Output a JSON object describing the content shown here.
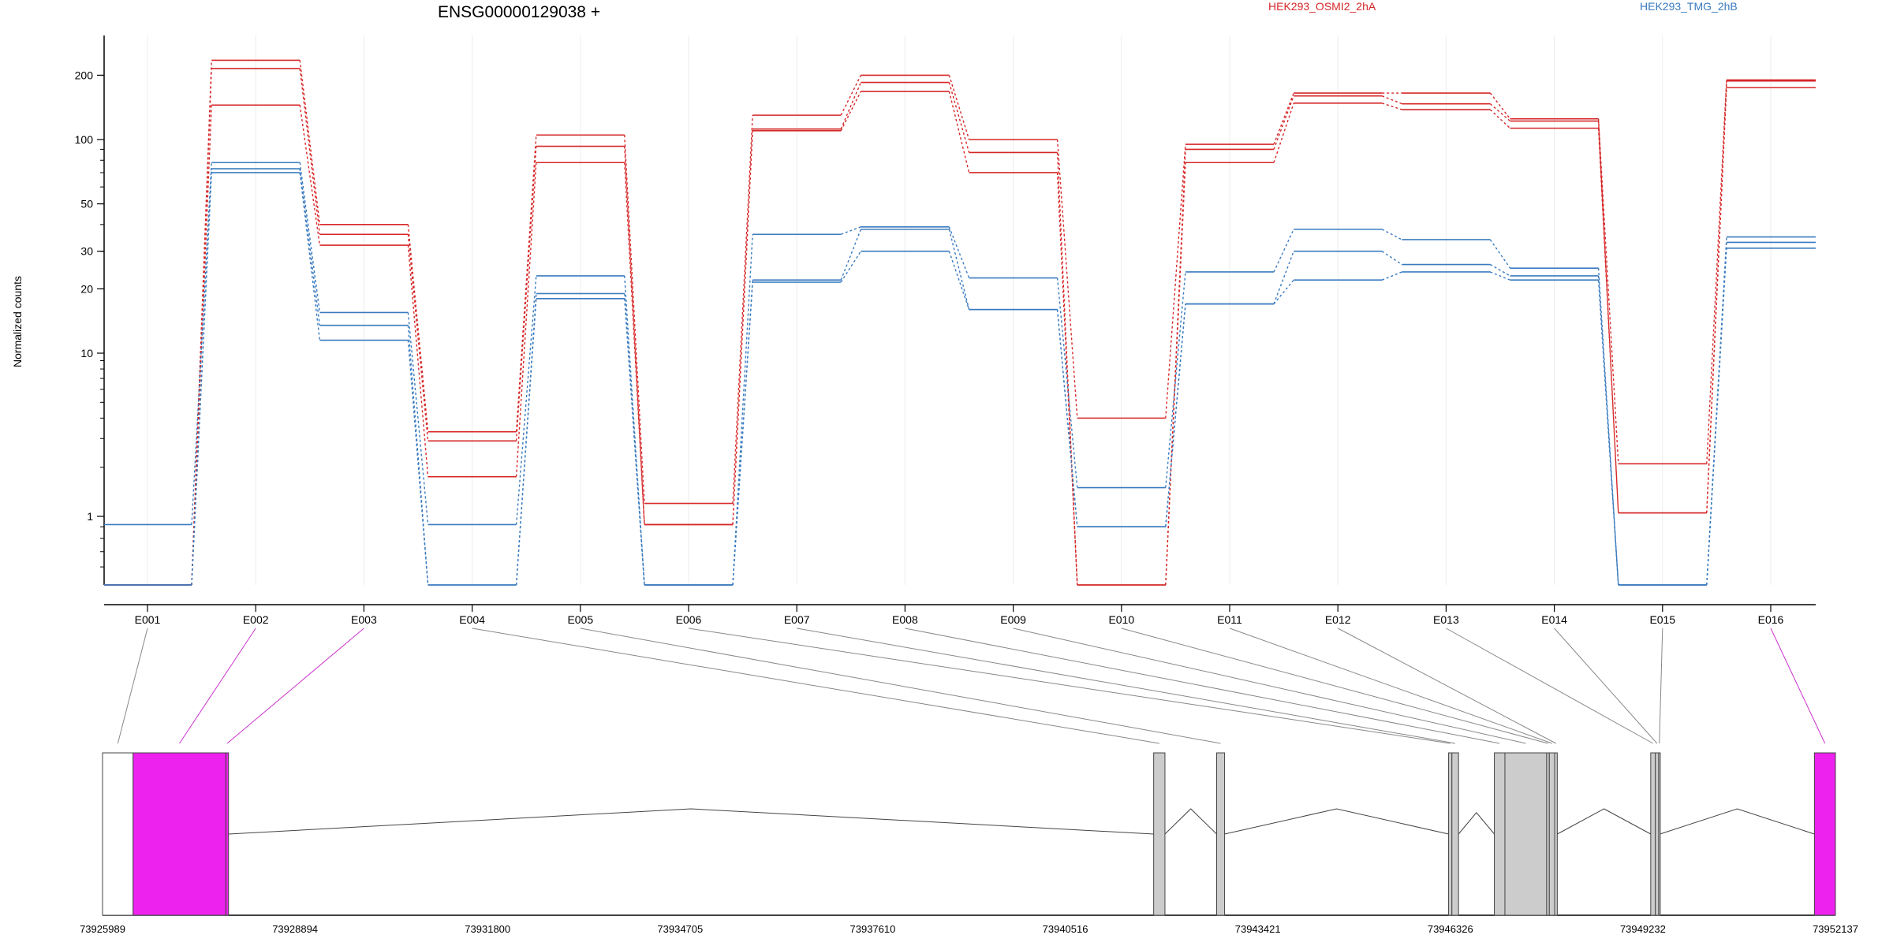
{
  "chart_data": {
    "type": "line",
    "title": "ENSG00000129038 +",
    "ylabel": "Normalized counts",
    "xlabel": "",
    "y_scale": "log-like (dexseq vst)",
    "ylim": [
      0.5,
      260
    ],
    "y_ticks": [
      "1",
      "10",
      "20",
      "30",
      "50",
      "100",
      "200"
    ],
    "grid": "vertical lines at each exon",
    "legend_placement": "top-right",
    "categories": [
      "E001",
      "E002",
      "E003",
      "E004",
      "E005",
      "E006",
      "E007",
      "E008",
      "E009",
      "E010",
      "E011",
      "E012",
      "E013",
      "E014",
      "E015",
      "E016"
    ],
    "colors": {
      "HEK293_OSMI2_2hA": "#d62728",
      "HEK293_TMG_2hB": "#3a7bbf",
      "exon_highlight": "#ee22ee",
      "exon_other": "#cccccc"
    },
    "series": [
      {
        "name": "HEK293_OSMI2_2hA",
        "color": "#d62728",
        "values": [
          0.5,
          235,
          40,
          3.3,
          105,
          1.2,
          130,
          200,
          100,
          4,
          95,
          165,
          165,
          125,
          2.1,
          190
        ]
      },
      {
        "name": "HEK293_OSMI2_2hA",
        "color": "#d62728",
        "values": [
          0.5,
          215,
          36,
          2.9,
          93,
          0.92,
          112,
          185,
          87,
          0.5,
          90,
          160,
          147,
          122,
          1.05,
          188
        ]
      },
      {
        "name": "HEK293_OSMI2_2hA",
        "color": "#d62728",
        "values": [
          0.5,
          145,
          32,
          1.75,
          78,
          0.92,
          110,
          168,
          70,
          0.5,
          78,
          148,
          138,
          113,
          1.05,
          175
        ]
      },
      {
        "name": "HEK293_TMG_2hB",
        "color": "#3a7bbf",
        "values": [
          0.92,
          78,
          15.5,
          0.92,
          23,
          0.5,
          36,
          39,
          22.5,
          1.5,
          24,
          38,
          34,
          25,
          0.5,
          35
        ]
      },
      {
        "name": "HEK293_TMG_2hB",
        "color": "#3a7bbf",
        "values": [
          0.5,
          73,
          13.5,
          0.5,
          19,
          0.5,
          22,
          38,
          16,
          0.9,
          17,
          30,
          26,
          23,
          0.5,
          33
        ]
      },
      {
        "name": "HEK293_TMG_2hB",
        "color": "#3a7bbf",
        "values": [
          0.5,
          70,
          11.5,
          0.5,
          18,
          0.5,
          21.5,
          30,
          16,
          0.9,
          17,
          22,
          24,
          22,
          0.5,
          31
        ]
      }
    ],
    "gene_model": {
      "coord_start": 73925989,
      "coord_end": 73952137,
      "coord_ticks": [
        "73925989",
        "73928894",
        "73931800",
        "73934705",
        "73937610",
        "73940516",
        "73943421",
        "73946326",
        "73949232",
        "73952137"
      ],
      "exons": [
        {
          "id": "E001",
          "start": 73925989,
          "end": 73926450,
          "color": "#ffffff"
        },
        {
          "id": "E002",
          "start": 73926450,
          "end": 73927850,
          "color": "#ee22ee"
        },
        {
          "id": "E003",
          "start": 73927850,
          "end": 73927890,
          "color": "#ee22ee"
        },
        {
          "id": "E004",
          "start": 73941850,
          "end": 73942020,
          "color": "#cccccc"
        },
        {
          "id": "E005",
          "start": 73942800,
          "end": 73942920,
          "color": "#cccccc"
        },
        {
          "id": "E006",
          "start": 73946300,
          "end": 73946350,
          "color": "#cccccc"
        },
        {
          "id": "E007",
          "start": 73946350,
          "end": 73946450,
          "color": "#cccccc"
        },
        {
          "id": "E008",
          "start": 73946990,
          "end": 73947150,
          "color": "#cccccc"
        },
        {
          "id": "E009",
          "start": 73947150,
          "end": 73947780,
          "color": "#cccccc"
        },
        {
          "id": "E010",
          "start": 73947780,
          "end": 73947820,
          "color": "#cccccc"
        },
        {
          "id": "E011",
          "start": 73947820,
          "end": 73947900,
          "color": "#cccccc"
        },
        {
          "id": "E012",
          "start": 73947900,
          "end": 73947940,
          "color": "#cccccc"
        },
        {
          "id": "E013",
          "start": 73949350,
          "end": 73949420,
          "color": "#cccccc"
        },
        {
          "id": "E014",
          "start": 73949420,
          "end": 73949470,
          "color": "#cccccc"
        },
        {
          "id": "E015",
          "start": 73949470,
          "end": 73949490,
          "color": "#cccccc"
        },
        {
          "id": "E016",
          "start": 73951820,
          "end": 73952137,
          "color": "#ee22ee"
        }
      ]
    }
  }
}
